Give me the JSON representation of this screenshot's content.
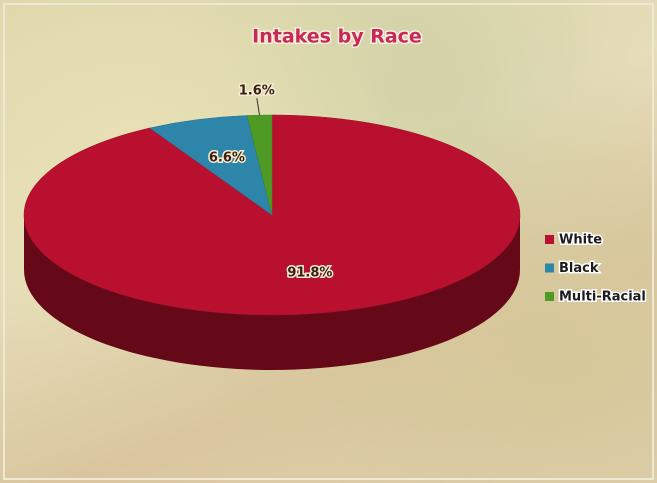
{
  "chart_data": {
    "type": "pie3d",
    "title": "Intakes by Race",
    "categories": [
      "White",
      "Black",
      "Multi-Racial"
    ],
    "values": [
      91.8,
      6.6,
      1.6
    ],
    "value_labels": [
      "91.8%",
      "6.6%",
      "1.6%"
    ],
    "colors": [
      "#b8102e",
      "#2d86aa",
      "#4f9a24"
    ],
    "legend": "right"
  }
}
